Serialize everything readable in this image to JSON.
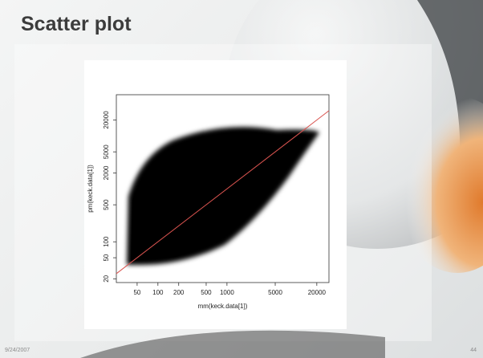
{
  "slide": {
    "title": "Scatter plot",
    "date": "9/24/2007",
    "page": "44"
  },
  "chart_data": {
    "type": "scatter",
    "x_label": "mm(keck.data[1])",
    "y_label": "pm(keck.data[1])",
    "log_x": true,
    "log_y": true,
    "xlim": [
      25,
      30000
    ],
    "ylim": [
      17,
      60000
    ],
    "xticks": [
      50,
      100,
      200,
      500,
      1000,
      5000,
      20000
    ],
    "yticks": [
      20,
      50,
      100,
      500,
      2000,
      5000,
      20000
    ],
    "color": "#000000",
    "diagonal": true,
    "diagonal_color": "#d9534f"
  }
}
